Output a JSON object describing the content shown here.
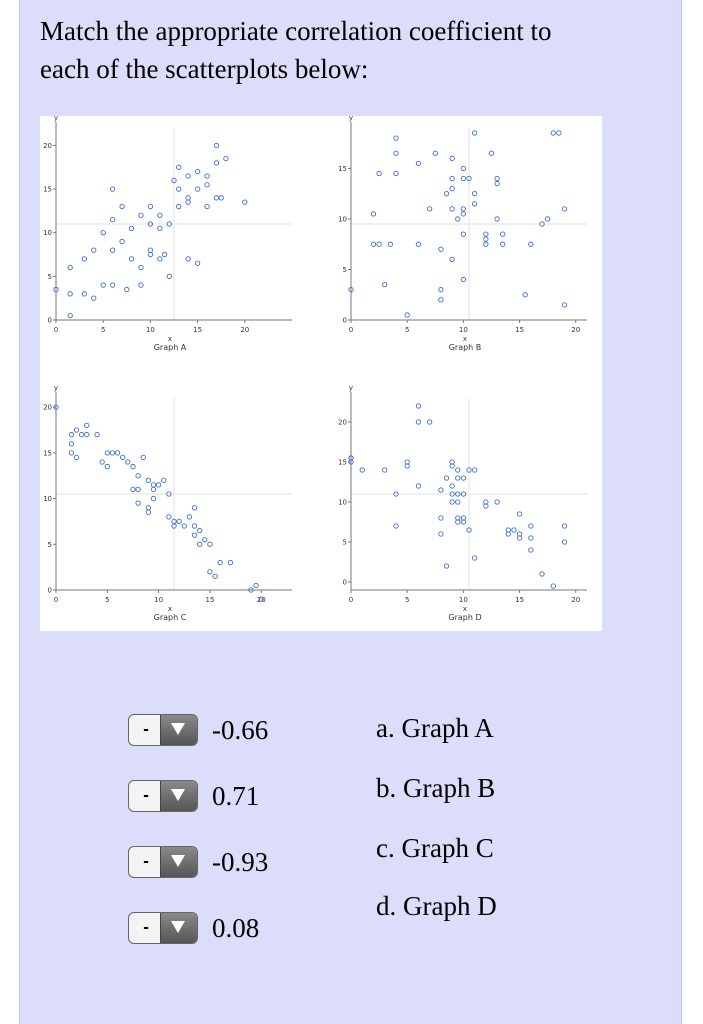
{
  "question": {
    "line1": "Match the appropriate correlation coefficient to",
    "line2": "each of the scatterplots below:"
  },
  "graphs": [
    {
      "name": "Graph A",
      "xlabel": "x",
      "ylabel": "y",
      "xlim": [
        0,
        25
      ],
      "ylim": [
        0,
        22
      ],
      "xticks": [
        "0",
        "5",
        "10",
        "15",
        "20"
      ],
      "yticks": [
        "0",
        "5",
        "10",
        "15",
        "20"
      ],
      "points": [
        [
          0,
          3.5
        ],
        [
          1.5,
          0.5
        ],
        [
          1.5,
          3
        ],
        [
          1.5,
          6
        ],
        [
          3,
          3
        ],
        [
          3,
          7
        ],
        [
          4,
          2.5
        ],
        [
          4,
          8
        ],
        [
          5,
          4
        ],
        [
          5,
          10
        ],
        [
          6,
          4
        ],
        [
          6,
          8
        ],
        [
          6,
          11.5
        ],
        [
          7,
          9
        ],
        [
          7,
          13
        ],
        [
          7.5,
          3.5
        ],
        [
          8,
          7
        ],
        [
          8,
          10.5
        ],
        [
          9,
          4
        ],
        [
          9,
          6
        ],
        [
          9,
          12
        ],
        [
          10,
          8
        ],
        [
          10,
          11
        ],
        [
          10,
          7.5
        ],
        [
          10,
          13
        ],
        [
          11,
          10.5
        ],
        [
          11,
          12
        ],
        [
          11,
          7
        ],
        [
          11.5,
          7.5
        ],
        [
          12,
          5
        ],
        [
          12,
          11
        ],
        [
          13,
          15
        ],
        [
          13,
          13
        ],
        [
          14,
          16.5
        ],
        [
          14,
          14
        ],
        [
          14,
          13.5
        ],
        [
          14,
          7
        ],
        [
          15,
          6.5
        ],
        [
          15,
          15
        ],
        [
          15,
          17
        ],
        [
          16,
          13
        ],
        [
          16,
          15.5
        ],
        [
          16,
          16.5
        ],
        [
          17,
          14
        ],
        [
          17,
          20
        ],
        [
          17,
          18
        ],
        [
          18,
          18.5
        ],
        [
          17.5,
          14
        ],
        [
          20,
          13.5
        ],
        [
          6,
          15
        ],
        [
          12.5,
          16
        ],
        [
          13,
          17.5
        ]
      ]
    },
    {
      "name": "Graph B",
      "xlabel": "x",
      "ylabel": "y",
      "xlim": [
        0,
        21
      ],
      "ylim": [
        0,
        19
      ],
      "xticks": [
        "0",
        "5",
        "10",
        "15",
        "20"
      ],
      "yticks": [
        "0",
        "5",
        "10",
        "15"
      ],
      "points": [
        [
          0,
          3
        ],
        [
          2,
          10.5
        ],
        [
          2,
          7.5
        ],
        [
          2.5,
          7.5
        ],
        [
          2.5,
          14.5
        ],
        [
          3,
          3.5
        ],
        [
          3.5,
          7.5
        ],
        [
          4,
          14.5
        ],
        [
          4,
          16.5
        ],
        [
          4,
          18
        ],
        [
          5,
          0.5
        ],
        [
          6,
          7.5
        ],
        [
          6,
          15.5
        ],
        [
          7,
          11
        ],
        [
          7.5,
          16.5
        ],
        [
          8,
          2
        ],
        [
          8,
          3
        ],
        [
          8,
          7
        ],
        [
          8.5,
          12.5
        ],
        [
          9,
          16
        ],
        [
          9,
          6
        ],
        [
          9,
          11
        ],
        [
          9,
          13
        ],
        [
          9,
          14
        ],
        [
          9.5,
          10
        ],
        [
          10,
          15
        ],
        [
          10,
          10.5
        ],
        [
          10,
          8.5
        ],
        [
          10,
          11
        ],
        [
          10,
          14
        ],
        [
          10,
          4
        ],
        [
          10.5,
          14
        ],
        [
          11,
          12.5
        ],
        [
          11,
          18.5
        ],
        [
          11,
          11.5
        ],
        [
          12,
          7.5
        ],
        [
          12,
          8
        ],
        [
          12,
          8.5
        ],
        [
          12.5,
          16.5
        ],
        [
          13,
          10
        ],
        [
          13,
          13.5
        ],
        [
          13,
          14
        ],
        [
          13.5,
          8.5
        ],
        [
          13.5,
          7.5
        ],
        [
          15.5,
          2.5
        ],
        [
          16,
          7.5
        ],
        [
          17,
          9.5
        ],
        [
          17.5,
          10
        ],
        [
          18,
          18.5
        ],
        [
          18.5,
          18.5
        ],
        [
          19,
          11
        ],
        [
          19,
          1.5
        ]
      ]
    },
    {
      "name": "Graph C",
      "xlabel": "x",
      "ylabel": "y",
      "xlim": [
        0,
        23
      ],
      "ylim": [
        0,
        21
      ],
      "xticks": [
        "0",
        "5",
        "10",
        "15",
        "20"
      ],
      "yticks": [
        "0",
        "5",
        "10",
        "15",
        "20"
      ],
      "points": [
        [
          0,
          20
        ],
        [
          1.5,
          15
        ],
        [
          1.5,
          17
        ],
        [
          1.5,
          16
        ],
        [
          2,
          14.5
        ],
        [
          2,
          17.5
        ],
        [
          2.5,
          17
        ],
        [
          3,
          17
        ],
        [
          3,
          18
        ],
        [
          4,
          17
        ],
        [
          4.5,
          14
        ],
        [
          5,
          13.5
        ],
        [
          5,
          15
        ],
        [
          5.5,
          15
        ],
        [
          6,
          15
        ],
        [
          6.5,
          14.5
        ],
        [
          7,
          14
        ],
        [
          7.5,
          11
        ],
        [
          7.5,
          13.5
        ],
        [
          8,
          12.5
        ],
        [
          8,
          9.5
        ],
        [
          8,
          11
        ],
        [
          8.5,
          14.5
        ],
        [
          9,
          12
        ],
        [
          9,
          9
        ],
        [
          9,
          8.5
        ],
        [
          9.5,
          11.5
        ],
        [
          9.5,
          11
        ],
        [
          9.5,
          10
        ],
        [
          10,
          11.5
        ],
        [
          10.5,
          12
        ],
        [
          11,
          10.5
        ],
        [
          11,
          8
        ],
        [
          11.5,
          7.5
        ],
        [
          11.5,
          7
        ],
        [
          12,
          7.5
        ],
        [
          12.5,
          7
        ],
        [
          13,
          8
        ],
        [
          13.5,
          9
        ],
        [
          13.5,
          7
        ],
        [
          13.5,
          6
        ],
        [
          14,
          5
        ],
        [
          14,
          6.5
        ],
        [
          14.5,
          5.5
        ],
        [
          15,
          5
        ],
        [
          15,
          2
        ],
        [
          15.5,
          1.5
        ],
        [
          16,
          3
        ],
        [
          17,
          3
        ],
        [
          19,
          0
        ],
        [
          19.5,
          0.5
        ],
        [
          20,
          -1
        ]
      ]
    },
    {
      "name": "Graph D",
      "xlabel": "x",
      "ylabel": "y",
      "xlim": [
        0,
        21
      ],
      "ylim": [
        -1,
        23
      ],
      "xticks": [
        "0",
        "5",
        "10",
        "15",
        "20"
      ],
      "yticks": [
        "0",
        "5",
        "10",
        "15",
        "20"
      ],
      "points": [
        [
          0,
          15
        ],
        [
          0,
          15.5
        ],
        [
          0,
          15.5
        ],
        [
          1,
          14
        ],
        [
          3,
          14
        ],
        [
          4,
          11
        ],
        [
          4,
          7
        ],
        [
          5,
          14.5
        ],
        [
          5,
          15
        ],
        [
          6,
          12
        ],
        [
          6,
          20
        ],
        [
          6,
          22
        ],
        [
          7,
          20
        ],
        [
          8,
          8
        ],
        [
          8,
          6
        ],
        [
          8,
          11.5
        ],
        [
          8.5,
          13
        ],
        [
          8.5,
          2
        ],
        [
          9,
          15
        ],
        [
          9,
          14.5
        ],
        [
          9,
          12
        ],
        [
          9,
          11
        ],
        [
          9,
          10
        ],
        [
          9.5,
          14
        ],
        [
          9.5,
          11
        ],
        [
          9.5,
          10
        ],
        [
          9.5,
          8
        ],
        [
          9.5,
          7.5
        ],
        [
          9.5,
          13
        ],
        [
          10,
          11
        ],
        [
          10,
          7.5
        ],
        [
          10,
          8
        ],
        [
          10,
          13
        ],
        [
          10.5,
          14
        ],
        [
          10.5,
          6.5
        ],
        [
          11,
          14
        ],
        [
          11,
          3
        ],
        [
          12,
          10
        ],
        [
          12,
          9.5
        ],
        [
          13,
          10
        ],
        [
          14,
          6
        ],
        [
          14,
          6.5
        ],
        [
          14.5,
          6.5
        ],
        [
          15,
          8.5
        ],
        [
          15,
          5.5
        ],
        [
          15,
          6
        ],
        [
          16,
          7
        ],
        [
          16,
          5.5
        ],
        [
          16,
          4
        ],
        [
          17,
          1
        ],
        [
          18,
          -0.5
        ],
        [
          19,
          5
        ],
        [
          19,
          7
        ]
      ]
    }
  ],
  "matches": [
    {
      "select_value": "-",
      "coefficient": "-0.66"
    },
    {
      "select_value": "-",
      "coefficient": "0.71"
    },
    {
      "select_value": "-",
      "coefficient": "-0.93"
    },
    {
      "select_value": "-",
      "coefficient": "0.08"
    }
  ],
  "answers": [
    "a. Graph A",
    "b. Graph B",
    "c. Graph C",
    "d. Graph D"
  ],
  "colors": {
    "panel_bg": "#dcdcfb",
    "point_stroke": "#3a6fd0",
    "axis": "#777777"
  }
}
